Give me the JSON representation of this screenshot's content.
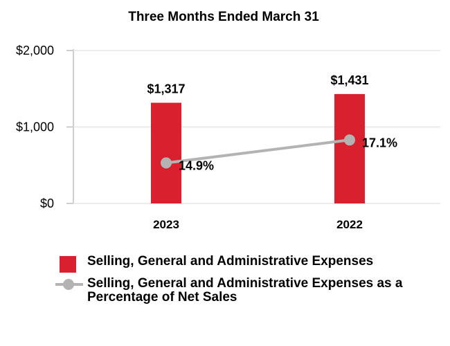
{
  "chart_data": {
    "type": "bar+line",
    "title": "Three Months Ended March 31",
    "categories": [
      "2023",
      "2022"
    ],
    "ylim": [
      0,
      2000
    ],
    "yticks": [
      0,
      1000,
      2000
    ],
    "ytick_labels": [
      "$0",
      "$1,000",
      "$2,000"
    ],
    "grid": true,
    "series": [
      {
        "name": "Selling, General and Administrative Expenses",
        "type": "bar",
        "color": "#d9202e",
        "values": [
          1317,
          1431
        ],
        "labels": [
          "$1,317",
          "$1,431"
        ]
      },
      {
        "name": "Selling, General and Administrative Expenses as a Percentage of Net Sales",
        "type": "line",
        "color": "#b3b3b3",
        "values": [
          14.9,
          17.1
        ],
        "labels": [
          "14.9%",
          "17.1%"
        ],
        "plotted_on_scale": [
          530,
          830
        ]
      }
    ],
    "legend_position": "bottom"
  }
}
